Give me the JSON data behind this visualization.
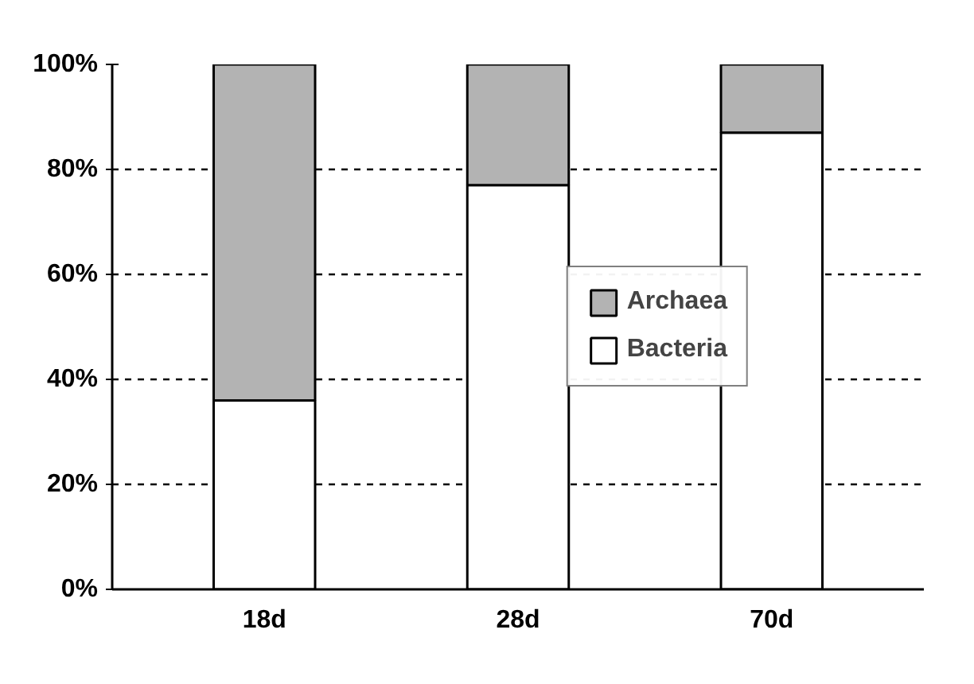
{
  "chart_data": {
    "type": "bar",
    "stacked": true,
    "categories": [
      "18d",
      "28d",
      "70d"
    ],
    "series": [
      {
        "name": "Bacteria",
        "color": "#ffffff",
        "values": [
          36,
          77,
          87
        ]
      },
      {
        "name": "Archaea",
        "color": "#b3b3b3",
        "values": [
          64,
          23,
          13
        ]
      }
    ],
    "ylim": [
      0,
      100
    ],
    "yticks": [
      {
        "value": 0,
        "label": "0%"
      },
      {
        "value": 20,
        "label": "20%"
      },
      {
        "value": 40,
        "label": "40%"
      },
      {
        "value": 60,
        "label": "60%"
      },
      {
        "value": 80,
        "label": "80%"
      },
      {
        "value": 100,
        "label": "100%"
      }
    ],
    "grid": "y",
    "legend": "right"
  }
}
